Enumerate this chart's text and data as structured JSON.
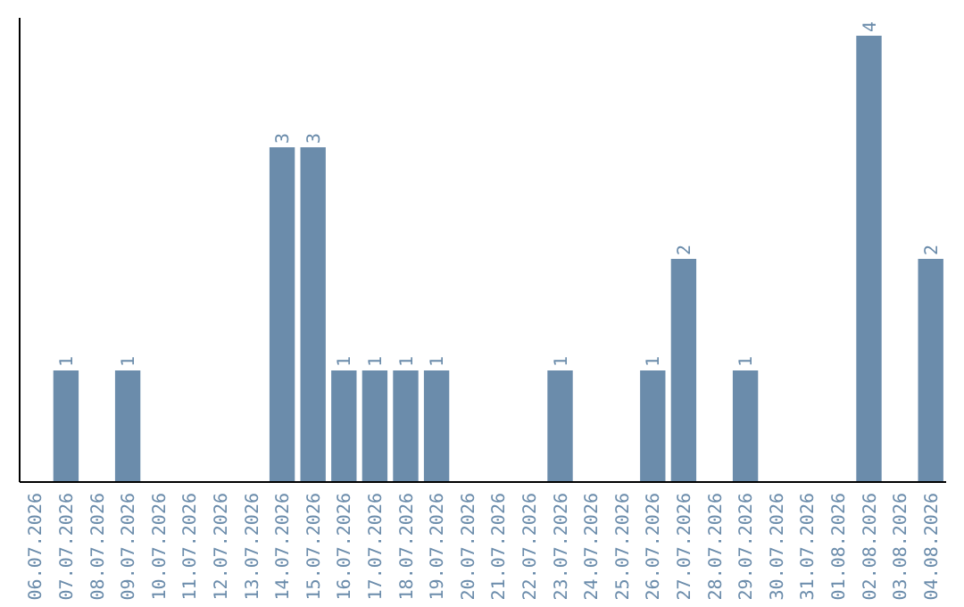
{
  "chart_data": {
    "type": "bar",
    "categories": [
      "06.07.2026",
      "07.07.2026",
      "08.07.2026",
      "09.07.2026",
      "10.07.2026",
      "11.07.2026",
      "12.07.2026",
      "13.07.2026",
      "14.07.2026",
      "15.07.2026",
      "16.07.2026",
      "17.07.2026",
      "18.07.2026",
      "19.07.2026",
      "20.07.2026",
      "21.07.2026",
      "22.07.2026",
      "23.07.2026",
      "24.07.2026",
      "25.07.2026",
      "26.07.2026",
      "27.07.2026",
      "28.07.2026",
      "29.07.2026",
      "30.07.2026",
      "31.07.2026",
      "01.08.2026",
      "02.08.2026",
      "03.08.2026",
      "04.08.2026"
    ],
    "values": [
      0,
      1,
      0,
      1,
      0,
      0,
      0,
      0,
      3,
      3,
      1,
      1,
      1,
      1,
      0,
      0,
      0,
      1,
      0,
      0,
      1,
      2,
      0,
      1,
      0,
      0,
      0,
      4,
      0,
      2
    ],
    "value_labels": [
      null,
      "1",
      null,
      "1",
      null,
      null,
      null,
      null,
      "3",
      "3",
      "1",
      "1",
      "1",
      "1",
      null,
      null,
      null,
      "1",
      null,
      null,
      "1",
      "2",
      null,
      "1",
      null,
      null,
      null,
      "4",
      null,
      "2"
    ],
    "color": "#6b8cab",
    "ylim": [
      0,
      4.16
    ],
    "tick_labels": "x"
  }
}
